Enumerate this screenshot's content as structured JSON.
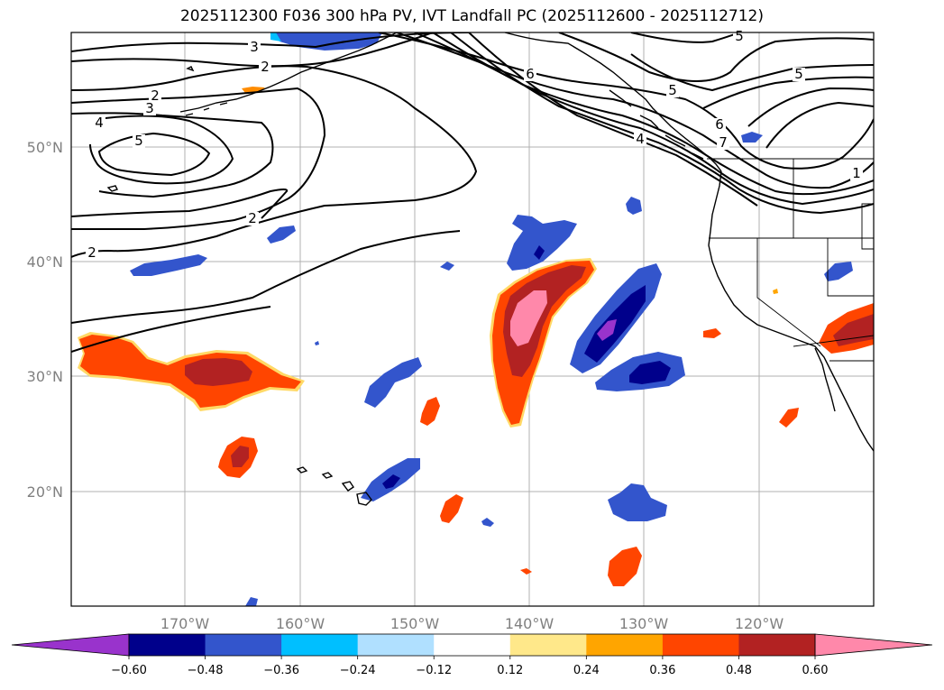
{
  "title": "2025112300 F036 300 hPa PV, IVT Landfall PC (2025112600 - 2025112712)",
  "x_ticks": [
    "170°W",
    "160°W",
    "150°W",
    "140°W",
    "130°W",
    "120°W"
  ],
  "y_ticks": [
    "50°N",
    "40°N",
    "30°N",
    "20°N"
  ],
  "contour_labels": [
    "5",
    "3",
    "2",
    "2",
    "3",
    "4",
    "5",
    "2",
    "2",
    "6",
    "5",
    "6",
    "4",
    "7",
    "5",
    "1"
  ],
  "colorbar": {
    "ticks": [
      "−0.60",
      "−0.48",
      "−0.36",
      "−0.24",
      "−0.12",
      "0.12",
      "0.24",
      "0.36",
      "0.48",
      "0.60"
    ],
    "colors": [
      "#9933cc",
      "#00008b",
      "#3355cc",
      "#00bfff",
      "#b0e0ff",
      "#ffffff",
      "#ffe88a",
      "#ffa500",
      "#ff4500",
      "#b22222",
      "#ff88aa",
      "#ff88aa"
    ]
  },
  "chart_data": {
    "type": "heatmap",
    "title": "2025112300 F036 300 hPa PV, IVT Landfall PC (2025112600 - 2025112712)",
    "x_range_deg": [
      -180,
      -110
    ],
    "y_range_deg": [
      10,
      60
    ],
    "levels": [
      -0.6,
      -0.48,
      -0.36,
      -0.24,
      -0.12,
      0.12,
      0.24,
      0.36,
      0.48,
      0.6
    ],
    "contour_levels": [
      1,
      2,
      3,
      4,
      5,
      6,
      7
    ]
  }
}
